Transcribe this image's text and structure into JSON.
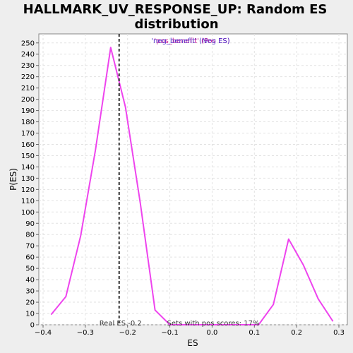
{
  "chart_data": {
    "type": "line",
    "title_line1": "HALLMARK_UV_RESPONSE_UP: Random ES",
    "title_line2": "distribution",
    "xlabel": "ES",
    "ylabel": "P(ES)",
    "xlim": [
      -0.41,
      0.32
    ],
    "ylim": [
      0,
      258
    ],
    "x_ticks": [
      -0.4,
      -0.3,
      -0.2,
      -0.1,
      0.0,
      0.1,
      0.2,
      0.3
    ],
    "x_tick_labels": [
      "−0.4",
      "−0.3",
      "−0.2",
      "−0.1",
      "0.0",
      "0.1",
      "0.2",
      "0.3"
    ],
    "y_ticks": [
      0,
      10,
      20,
      30,
      40,
      50,
      60,
      70,
      80,
      90,
      100,
      110,
      120,
      130,
      140,
      150,
      160,
      170,
      180,
      190,
      200,
      210,
      220,
      230,
      240,
      250
    ],
    "grid": true,
    "series": [
      {
        "color": "#ee44ee",
        "x": [
          -0.381,
          -0.346,
          -0.311,
          -0.276,
          -0.24,
          -0.205,
          -0.17,
          -0.135,
          -0.1,
          -0.065,
          -0.03,
          0.005,
          0.04,
          0.075,
          0.11,
          0.145,
          0.181,
          0.216,
          0.251,
          0.286
        ],
        "y": [
          9,
          25,
          79,
          155,
          246,
          193,
          108,
          13,
          0,
          0,
          0,
          0,
          0,
          0,
          0,
          18,
          76,
          53,
          23,
          3
        ]
      }
    ],
    "real_es": -0.22,
    "real_es_label": "Real ES -0.2",
    "pos_scores_label": "Sets with pos scores: 17%",
    "legend_overlap_a": "'pos_benefit' (Pos ES)",
    "legend_overlap_b": "'neg_benefit' (Neg ES)",
    "legend_color_a": "#cc2299",
    "legend_color_b": "#5533cc"
  }
}
